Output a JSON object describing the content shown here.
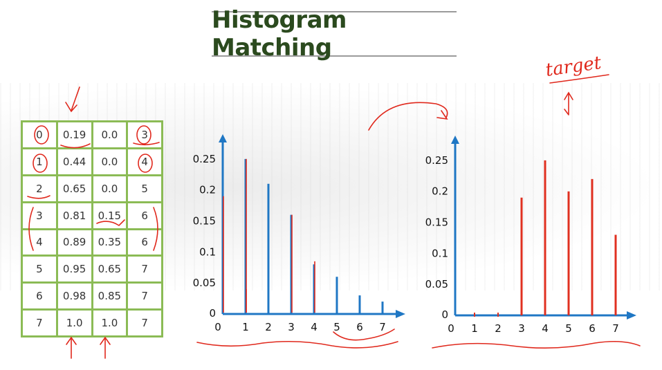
{
  "title": "Histogram Matching",
  "annotation": "target",
  "table": {
    "rows": [
      [
        "0",
        "0.19",
        "0.0",
        "3"
      ],
      [
        "1",
        "0.44",
        "0.0",
        "4"
      ],
      [
        "2",
        "0.65",
        "0.0",
        "5"
      ],
      [
        "3",
        "0.81",
        "0.15",
        "6"
      ],
      [
        "4",
        "0.89",
        "0.35",
        "6"
      ],
      [
        "5",
        "0.95",
        "0.65",
        "7"
      ],
      [
        "6",
        "0.98",
        "0.85",
        "7"
      ],
      [
        "7",
        "1.0",
        "1.0",
        "7"
      ]
    ]
  },
  "chart_data": [
    {
      "type": "bar",
      "categories": [
        "0",
        "1",
        "2",
        "3",
        "4",
        "5",
        "6",
        "7"
      ],
      "y_ticks": [
        "0.25",
        "0.2",
        "0.15",
        "0.1",
        "0.05",
        "0"
      ],
      "ylim": [
        0,
        0.27
      ],
      "series": [
        {
          "values": [
            0.19,
            0.25,
            0.21,
            0.16,
            0.08,
            0.06,
            0.03,
            0.02
          ],
          "color": "#1f77c4"
        }
      ],
      "overlay_red": [
        {
          "x": 0,
          "values": [
            0.19
          ]
        },
        {
          "x": 1,
          "values": [
            0.25,
            0.04
          ]
        },
        {
          "x": 3,
          "values": [
            0.16
          ]
        },
        {
          "x": 4,
          "values": [
            0.085
          ]
        }
      ]
    },
    {
      "type": "bar",
      "categories": [
        "0",
        "1",
        "2",
        "3",
        "4",
        "5",
        "6",
        "7"
      ],
      "y_ticks": [
        "0.25",
        "0.2",
        "0.15",
        "0.1",
        "0.05",
        "0"
      ],
      "ylim": [
        0,
        0.27
      ],
      "series": [
        {
          "values": [
            0,
            0,
            0,
            0.19,
            0.25,
            0.2,
            0.22,
            0.13
          ],
          "color": "#e03020"
        }
      ]
    }
  ]
}
